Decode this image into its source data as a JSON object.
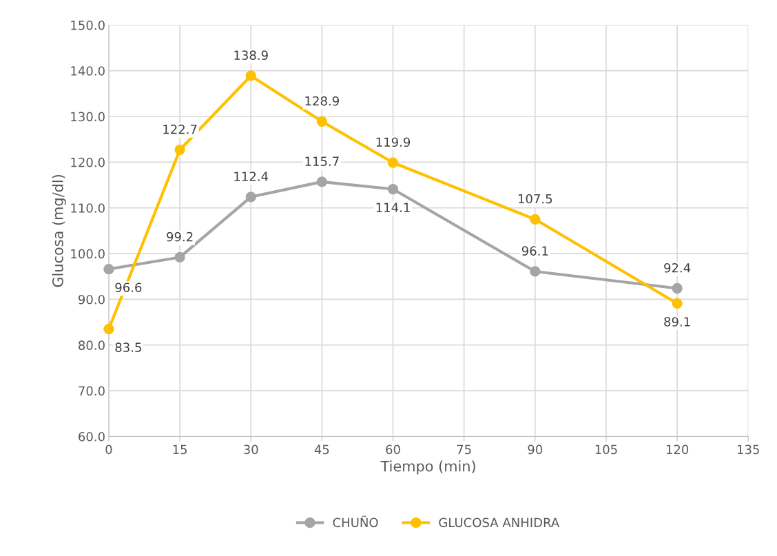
{
  "chart_data": {
    "type": "line",
    "xlabel": "Tiempo (min)",
    "ylabel": "Glucosa (mg/dl)",
    "x": [
      0,
      15,
      30,
      45,
      60,
      90,
      120
    ],
    "series": [
      {
        "name": "CHUÑO",
        "color": "#a5a5a5",
        "values": [
          96.6,
          99.2,
          112.4,
          115.7,
          114.1,
          96.1,
          92.4
        ]
      },
      {
        "name": "GLUCOSA ANHIDRA",
        "color": "#ffc000",
        "values": [
          83.5,
          122.7,
          138.9,
          128.9,
          119.9,
          107.5,
          89.1
        ]
      }
    ],
    "xlim": [
      0,
      135
    ],
    "xticks": [
      0,
      15,
      30,
      45,
      60,
      75,
      90,
      105,
      120,
      135
    ],
    "ylim": [
      60,
      150
    ],
    "yticks": [
      {
        "value": 60,
        "label": "60.0"
      },
      {
        "value": 70,
        "label": "70.0"
      },
      {
        "value": 80,
        "label": "80.0"
      },
      {
        "value": 90,
        "label": "90.0"
      },
      {
        "value": 100,
        "label": "100.0"
      },
      {
        "value": 110,
        "label": "110.0"
      },
      {
        "value": 120,
        "label": "120.0"
      },
      {
        "value": 130,
        "label": "130.0"
      },
      {
        "value": 140,
        "label": "140.0"
      },
      {
        "value": 150,
        "label": "150.0"
      }
    ],
    "grid": true,
    "legend": "bottom",
    "marker": "circle",
    "line_style": "solid",
    "data_labels": true
  }
}
